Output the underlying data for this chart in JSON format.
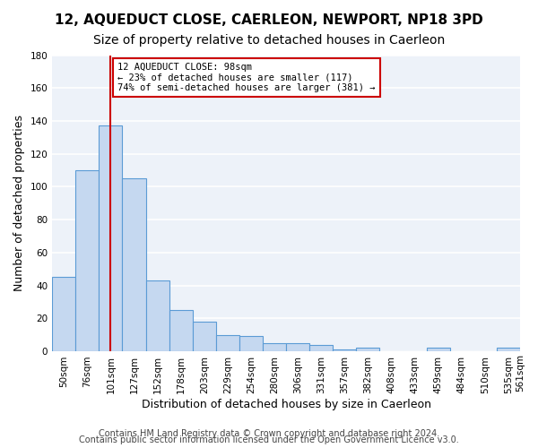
{
  "title": "12, AQUEDUCT CLOSE, CAERLEON, NEWPORT, NP18 3PD",
  "subtitle": "Size of property relative to detached houses in Caerleon",
  "xlabel": "Distribution of detached houses by size in Caerleon",
  "ylabel": "Number of detached properties",
  "bar_values": [
    45,
    110,
    137,
    105,
    43,
    25,
    18,
    10,
    9,
    5,
    5,
    4,
    1,
    2,
    0,
    0,
    2,
    0,
    0,
    2
  ],
  "bar_labels": [
    "50sqm",
    "76sqm",
    "101sqm",
    "127sqm",
    "152sqm",
    "178sqm",
    "203sqm",
    "229sqm",
    "254sqm",
    "280sqm",
    "306sqm",
    "331sqm",
    "357sqm",
    "382sqm",
    "408sqm",
    "433sqm",
    "459sqm",
    "484sqm",
    "510sqm",
    "535sqm"
  ],
  "bar_color": "#c5d8f0",
  "bar_edge_color": "#5b9bd5",
  "vline_x": 2,
  "vline_color": "#cc0000",
  "annotation_title": "12 AQUEDUCT CLOSE: 98sqm",
  "annotation_line1": "← 23% of detached houses are smaller (117)",
  "annotation_line2": "74% of semi-detached houses are larger (381) →",
  "annotation_box_color": "#ffffff",
  "annotation_box_edge_color": "#cc0000",
  "ylim": [
    0,
    180
  ],
  "yticks": [
    0,
    20,
    40,
    60,
    80,
    100,
    120,
    140,
    160,
    180
  ],
  "footer_line1": "Contains HM Land Registry data © Crown copyright and database right 2024.",
  "footer_line2": "Contains public sector information licensed under the Open Government Licence v3.0.",
  "background_color": "#ffffff",
  "plot_bg_color": "#edf2f9",
  "grid_color": "#ffffff",
  "title_fontsize": 11,
  "subtitle_fontsize": 10,
  "axis_label_fontsize": 9,
  "tick_fontsize": 7.5,
  "footer_fontsize": 7
}
